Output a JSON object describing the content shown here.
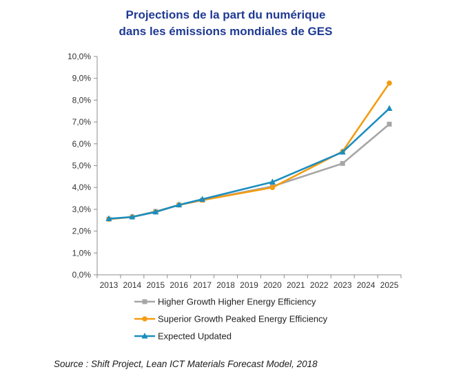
{
  "title": {
    "line1": "Projections de la part du numérique",
    "line2": "dans les émissions mondiales de GES"
  },
  "source": "Source : Shift Project, Lean ICT Materials Forecast Model, 2018",
  "chart_data": {
    "type": "line",
    "title": "Projections de la part du numérique dans les émissions mondiales de GES",
    "xlabel": "",
    "ylabel": "",
    "ylim": [
      0,
      10
    ],
    "y_ticks": [
      "0,0%",
      "1,0%",
      "2,0%",
      "3,0%",
      "4,0%",
      "5,0%",
      "6,0%",
      "7,0%",
      "8,0%",
      "9,0%",
      "10,0%"
    ],
    "categories": [
      "2013",
      "2014",
      "2015",
      "2016",
      "2017",
      "2018",
      "2019",
      "2020",
      "2021",
      "2022",
      "2023",
      "2024",
      "2025"
    ],
    "legend_position": "bottom",
    "series": [
      {
        "name": "Higher Growth Higher Energy Efficiency",
        "color": "#a6a6a6",
        "marker": "square",
        "points": [
          {
            "x": "2013",
            "y": 2.55
          },
          {
            "x": "2014",
            "y": 2.65
          },
          {
            "x": "2015",
            "y": 2.9
          },
          {
            "x": "2016",
            "y": 3.2
          },
          {
            "x": "2017",
            "y": 3.42
          },
          {
            "x": "2020",
            "y": 4.05
          },
          {
            "x": "2023",
            "y": 5.1
          },
          {
            "x": "2025",
            "y": 6.9
          }
        ]
      },
      {
        "name": "Superior Growth Peaked Energy Efficiency",
        "color": "#f39c12",
        "marker": "circle",
        "points": [
          {
            "x": "2013",
            "y": 2.55
          },
          {
            "x": "2014",
            "y": 2.65
          },
          {
            "x": "2015",
            "y": 2.88
          },
          {
            "x": "2016",
            "y": 3.2
          },
          {
            "x": "2017",
            "y": 3.42
          },
          {
            "x": "2020",
            "y": 4.0
          },
          {
            "x": "2023",
            "y": 5.65
          },
          {
            "x": "2025",
            "y": 8.78
          }
        ]
      },
      {
        "name": "Expected Updated",
        "color": "#1b8dbf",
        "marker": "triangle",
        "points": [
          {
            "x": "2013",
            "y": 2.57
          },
          {
            "x": "2014",
            "y": 2.65
          },
          {
            "x": "2015",
            "y": 2.88
          },
          {
            "x": "2016",
            "y": 3.2
          },
          {
            "x": "2017",
            "y": 3.46
          },
          {
            "x": "2020",
            "y": 4.25
          },
          {
            "x": "2023",
            "y": 5.62
          },
          {
            "x": "2025",
            "y": 7.62
          }
        ]
      }
    ]
  }
}
